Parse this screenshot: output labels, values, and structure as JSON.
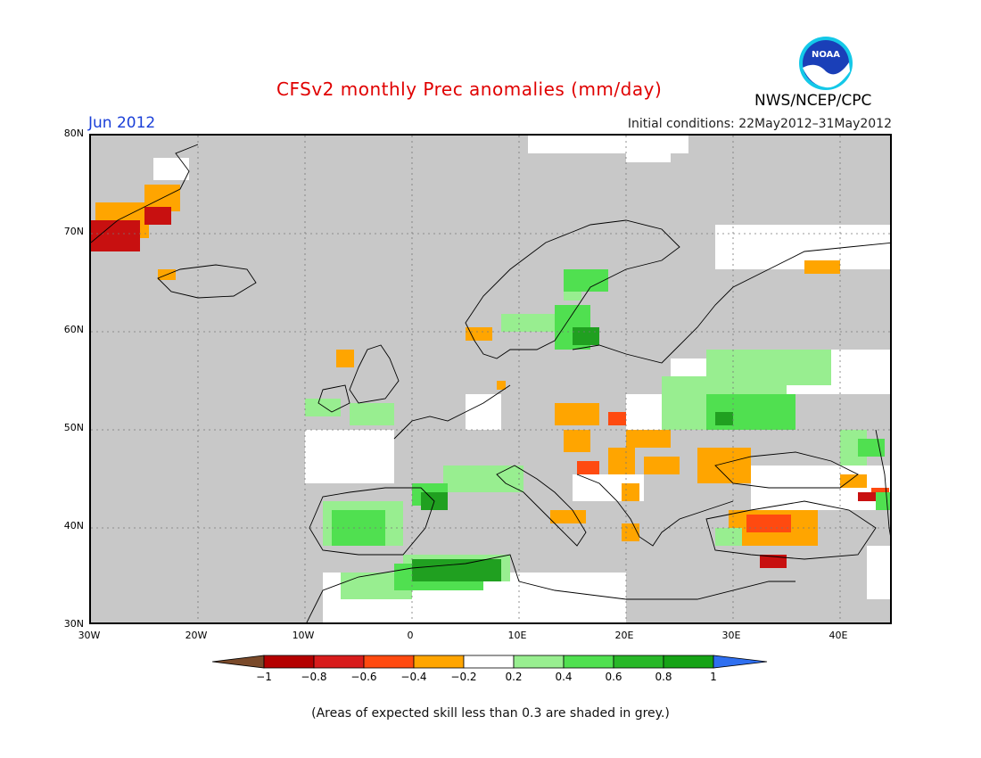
{
  "title": "CFSv2 monthly Prec anomalies (mm/day)",
  "month": "Jun 2012",
  "initial_conditions": "Initial conditions: 22May2012–31May2012",
  "agency": "NWS/NCEP/CPC",
  "logo_text": "NOAA",
  "footnote": "(Areas of expected skill less than 0.3 are shaded in grey.)",
  "lat_labels": [
    "80N",
    "70N",
    "60N",
    "50N",
    "40N",
    "30N"
  ],
  "lon_labels": [
    "30W",
    "20W",
    "10W",
    "0",
    "10E",
    "20E",
    "30E",
    "40E"
  ],
  "colorbar": {
    "labels": [
      "−1",
      "−0.8",
      "−0.6",
      "−0.4",
      "−0.2",
      "0.2",
      "0.4",
      "0.6",
      "0.8",
      "1"
    ],
    "colors": [
      "#7a4a2a",
      "#b40000",
      "#d81c1c",
      "#ff4a10",
      "#ffa500",
      "#ffffff",
      "#98ee90",
      "#50e050",
      "#28b828",
      "#16a316",
      "#2f6ff0"
    ]
  },
  "map_colors": {
    "grey": "#c8c8c8",
    "neutral": "#ffffff",
    "dry_strong": "#c81010",
    "dry": "#ff4a10",
    "dry_weak": "#ffa500",
    "wet_weak": "#98ee90",
    "wet": "#50e050",
    "wet_strong": "#20a020"
  }
}
